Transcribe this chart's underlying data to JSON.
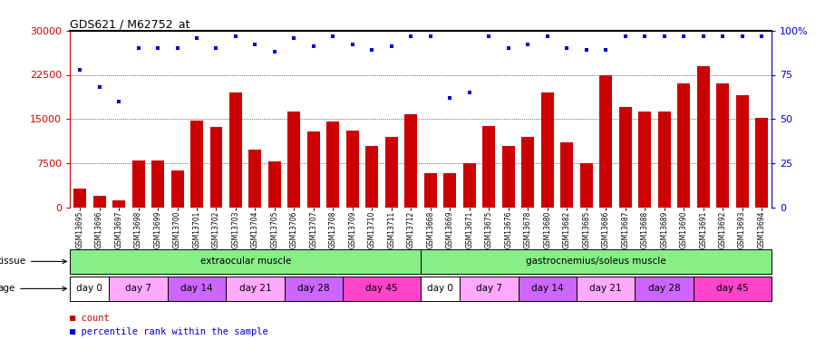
{
  "title": "GDS621 / M62752_at",
  "samples": [
    "GSM13695",
    "GSM13696",
    "GSM13697",
    "GSM13698",
    "GSM13699",
    "GSM13700",
    "GSM13701",
    "GSM13702",
    "GSM13703",
    "GSM13704",
    "GSM13705",
    "GSM13706",
    "GSM13707",
    "GSM13708",
    "GSM13709",
    "GSM13710",
    "GSM13711",
    "GSM13712",
    "GSM13668",
    "GSM13669",
    "GSM13671",
    "GSM13675",
    "GSM13676",
    "GSM13678",
    "GSM13680",
    "GSM13682",
    "GSM13685",
    "GSM13686",
    "GSM13687",
    "GSM13688",
    "GSM13689",
    "GSM13690",
    "GSM13691",
    "GSM13692",
    "GSM13693",
    "GSM13694"
  ],
  "bar_values": [
    3200,
    2000,
    1200,
    8000,
    8000,
    6200,
    14800,
    13600,
    19500,
    9800,
    7800,
    16200,
    12900,
    14600,
    13000,
    10500,
    12000,
    15800,
    5800,
    5800,
    7500,
    13800,
    10500,
    11900,
    19500,
    11000,
    7500,
    22500,
    17000,
    16300,
    16300,
    21000,
    24000,
    21000,
    19000,
    15200
  ],
  "percentile_values": [
    78,
    68,
    60,
    90,
    90,
    90,
    96,
    90,
    97,
    92,
    88,
    96,
    91,
    97,
    92,
    89,
    91,
    97,
    97,
    62,
    65,
    97,
    90,
    92,
    97,
    90,
    89,
    89,
    97,
    97,
    97,
    97,
    97,
    97,
    97,
    97
  ],
  "ylim_left": [
    0,
    30000
  ],
  "ylim_right": [
    0,
    100
  ],
  "yticks_left": [
    0,
    7500,
    15000,
    22500,
    30000
  ],
  "yticks_right": [
    0,
    25,
    50,
    75,
    100
  ],
  "bar_color": "#cc0000",
  "dot_color": "#0000cc",
  "tissue_groups": [
    {
      "label": "extraocular muscle",
      "start": 0,
      "end": 17,
      "color": "#88ee88"
    },
    {
      "label": "gastrocnemius/soleus muscle",
      "start": 18,
      "end": 35,
      "color": "#88ee88"
    }
  ],
  "age_groups": [
    {
      "label": "day 0",
      "start": 0,
      "end": 1,
      "color": "#ffffff"
    },
    {
      "label": "day 7",
      "start": 2,
      "end": 4,
      "color": "#ffaaff"
    },
    {
      "label": "day 14",
      "start": 5,
      "end": 7,
      "color": "#cc66ff"
    },
    {
      "label": "day 21",
      "start": 8,
      "end": 10,
      "color": "#ffaaff"
    },
    {
      "label": "day 28",
      "start": 11,
      "end": 13,
      "color": "#cc66ff"
    },
    {
      "label": "day 45",
      "start": 14,
      "end": 17,
      "color": "#ff44cc"
    },
    {
      "label": "day 0",
      "start": 18,
      "end": 19,
      "color": "#ffffff"
    },
    {
      "label": "day 7",
      "start": 20,
      "end": 22,
      "color": "#ffaaff"
    },
    {
      "label": "day 14",
      "start": 23,
      "end": 25,
      "color": "#cc66ff"
    },
    {
      "label": "day 21",
      "start": 26,
      "end": 28,
      "color": "#ffaaff"
    },
    {
      "label": "day 28",
      "start": 29,
      "end": 31,
      "color": "#cc66ff"
    },
    {
      "label": "day 45",
      "start": 32,
      "end": 35,
      "color": "#ff44cc"
    }
  ]
}
